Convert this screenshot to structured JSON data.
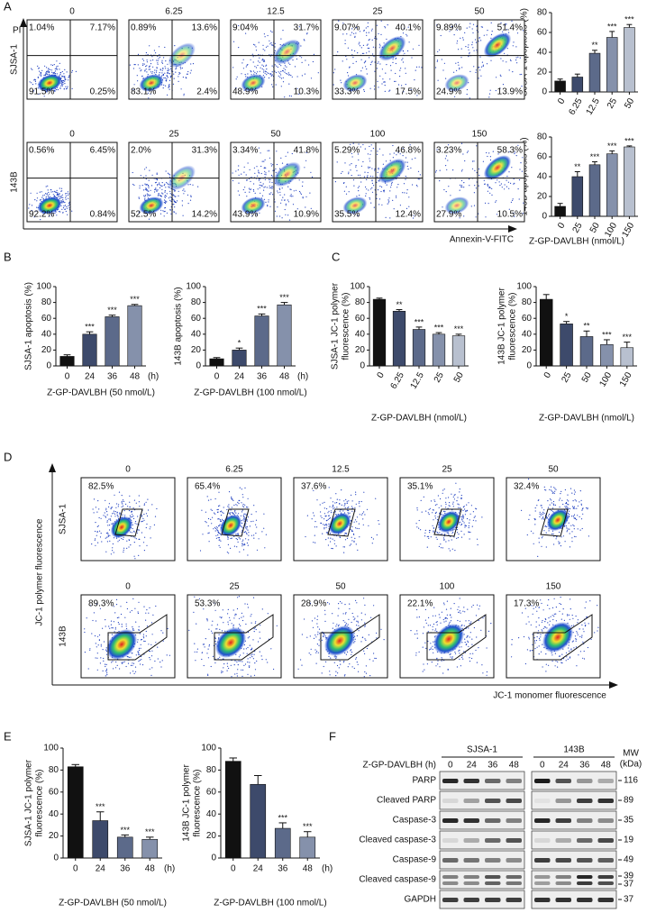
{
  "panel_labels": [
    "A",
    "B",
    "C",
    "D",
    "E",
    "F"
  ],
  "chart_data": [
    {
      "type": "bar",
      "y_label": "SJSA-1 apoptosis (%)",
      "categories": [
        "0",
        "6.25",
        "12.5",
        "25",
        "50"
      ],
      "values": [
        11,
        15,
        39,
        55,
        65
      ],
      "errors": [
        2,
        3,
        3,
        6,
        3
      ],
      "annotations": [
        null,
        null,
        "**",
        "***",
        "***"
      ],
      "colors": [
        "#111111",
        "#3d4a6b",
        "#5c6a8a",
        "#8591ab",
        "#b8c0cf"
      ],
      "ylim": [
        0,
        80
      ],
      "yticks": [
        0,
        20,
        40,
        60,
        80
      ]
    },
    {
      "type": "bar",
      "y_label": "143B apoptosis (%)",
      "x_label": "Z-GP-DAVLBH (nmol/L)",
      "categories": [
        "0",
        "25",
        "50",
        "100",
        "150"
      ],
      "values": [
        10,
        40,
        52,
        63,
        70
      ],
      "errors": [
        3,
        5,
        3,
        3,
        1
      ],
      "annotations": [
        null,
        "**",
        "***",
        "***",
        "***"
      ],
      "colors": [
        "#111111",
        "#3d4a6b",
        "#5c6a8a",
        "#8591ab",
        "#b8c0cf"
      ],
      "ylim": [
        0,
        80
      ],
      "yticks": [
        0,
        20,
        40,
        60,
        80
      ]
    },
    {
      "type": "bar",
      "y_label": "SJSA-1 apoptosis (%)",
      "x_label": "Z-GP-DAVLBH (50 nmol/L)",
      "x_unit": "(h)",
      "categories": [
        "0",
        "24",
        "36",
        "48"
      ],
      "values": [
        12,
        40,
        62,
        76
      ],
      "errors": [
        2,
        3,
        2,
        1.5
      ],
      "annotations": [
        null,
        "***",
        "***",
        "***"
      ],
      "colors": [
        "#111111",
        "#3d4a6b",
        "#5c6a8a",
        "#8591ab"
      ],
      "ylim": [
        0,
        100
      ],
      "yticks": [
        0,
        20,
        40,
        60,
        80,
        100
      ]
    },
    {
      "type": "bar",
      "y_label": "143B apoptosis (%)",
      "x_label": "Z-GP-DAVLBH (100 nmol/L)",
      "x_unit": "(h)",
      "categories": [
        "0",
        "24",
        "36",
        "48"
      ],
      "values": [
        9,
        20,
        63,
        77
      ],
      "errors": [
        1.5,
        2.5,
        2.5,
        3
      ],
      "annotations": [
        null,
        "*",
        "***",
        "***"
      ],
      "colors": [
        "#111111",
        "#3d4a6b",
        "#5c6a8a",
        "#8591ab"
      ],
      "ylim": [
        0,
        100
      ],
      "yticks": [
        0,
        20,
        40,
        60,
        80,
        100
      ]
    },
    {
      "type": "bar",
      "y_label": [
        "SJSA-1 JC-1 polymer",
        "fluorescence (%)"
      ],
      "x_label": "Z-GP-DAVLBH (nmol/L)",
      "categories": [
        "0",
        "6.25",
        "12.5",
        "25",
        "50"
      ],
      "values": [
        84,
        69,
        46,
        40,
        38
      ],
      "errors": [
        1.5,
        2,
        3,
        2,
        2
      ],
      "annotations": [
        null,
        "**",
        "***",
        "***",
        "***"
      ],
      "colors": [
        "#111111",
        "#3d4a6b",
        "#5c6a8a",
        "#8591ab",
        "#b8c0cf"
      ],
      "ylim": [
        0,
        100
      ],
      "yticks": [
        0,
        20,
        40,
        60,
        80,
        100
      ]
    },
    {
      "type": "bar",
      "y_label": [
        "143B JC-1 polymer",
        "fluorescence (%)"
      ],
      "x_label": "Z-GP-DAVLBH (nmol/L)",
      "categories": [
        "0",
        "25",
        "50",
        "100",
        "150"
      ],
      "values": [
        84,
        53,
        37,
        27,
        23
      ],
      "errors": [
        6,
        3,
        7,
        6,
        7
      ],
      "annotations": [
        null,
        "*",
        "**",
        "***",
        "***"
      ],
      "colors": [
        "#111111",
        "#3d4a6b",
        "#5c6a8a",
        "#8591ab",
        "#b8c0cf"
      ],
      "ylim": [
        0,
        100
      ],
      "yticks": [
        0,
        20,
        40,
        60,
        80,
        100
      ]
    },
    {
      "type": "bar",
      "y_label": [
        "SJSA-1 JC-1 polymer",
        "fluorescence (%)"
      ],
      "x_label": "Z-GP-DAVLBH (50 nmol/L)",
      "x_unit": "(h)",
      "categories": [
        "0",
        "24",
        "36",
        "48"
      ],
      "values": [
        83,
        34,
        19,
        17
      ],
      "errors": [
        2,
        8,
        2,
        2
      ],
      "annotations": [
        null,
        "***",
        "***",
        "***"
      ],
      "colors": [
        "#111111",
        "#3d4a6b",
        "#5c6a8a",
        "#8591ab"
      ],
      "ylim": [
        0,
        100
      ],
      "yticks": [
        0,
        20,
        40,
        60,
        80,
        100
      ]
    },
    {
      "type": "bar",
      "y_label": [
        "143B JC-1 polymer",
        "fluorescence (%)"
      ],
      "x_label": "Z-GP-DAVLBH (100 nmol/L)",
      "x_unit": "(h)",
      "categories": [
        "0",
        "24",
        "36",
        "48"
      ],
      "values": [
        88,
        67,
        27,
        19
      ],
      "errors": [
        3,
        8,
        5,
        5
      ],
      "annotations": [
        null,
        null,
        "***",
        "***"
      ],
      "colors": [
        "#111111",
        "#3d4a6b",
        "#5c6a8a",
        "#8591ab"
      ],
      "ylim": [
        0,
        100
      ],
      "yticks": [
        0,
        20,
        40,
        60,
        80,
        100
      ]
    }
  ],
  "flow_apoptosis": {
    "x_label": "Annexin-V-FITC",
    "y_label": "PI",
    "rows": [
      {
        "cell_line": "SJSA-1",
        "doses": [
          "0",
          "6.25",
          "12.5",
          "25",
          "50"
        ],
        "quadrants": [
          [
            "1.04%",
            "7.17%",
            "91.5%",
            "0.25%"
          ],
          [
            "0.89%",
            "13.6%",
            "83.1%",
            "2.4%"
          ],
          [
            "9.04%",
            "31.7%",
            "48.9%",
            "10.3%"
          ],
          [
            "9.07%",
            "40.1%",
            "33.3%",
            "17.5%"
          ],
          [
            "9.89%",
            "51.4%",
            "24.9%",
            "13.9%"
          ]
        ]
      },
      {
        "cell_line": "143B",
        "doses": [
          "0",
          "25",
          "50",
          "100",
          "150"
        ],
        "quadrants": [
          [
            "0.56%",
            "6.45%",
            "92.2%",
            "0.84%"
          ],
          [
            "2.0%",
            "31.3%",
            "52.5%",
            "14.2%"
          ],
          [
            "3.34%",
            "41.8%",
            "43.9%",
            "10.9%"
          ],
          [
            "5.29%",
            "46.8%",
            "35.5%",
            "12.4%"
          ],
          [
            "3.23%",
            "58.3%",
            "27.9%",
            "10.5%"
          ]
        ]
      }
    ]
  },
  "flow_jc1": {
    "x_label": "JC-1 monomer fluorescence",
    "y_label": "JC-1 polymer fluorescence",
    "rows": [
      {
        "cell_line": "SJSA-1",
        "doses": [
          "0",
          "6.25",
          "12.5",
          "25",
          "50"
        ],
        "percents": [
          "82.5%",
          "65.4%",
          "37.6%",
          "35.1%",
          "32.4%"
        ]
      },
      {
        "cell_line": "143B",
        "doses": [
          "0",
          "25",
          "50",
          "100",
          "150"
        ],
        "percents": [
          "89.3%",
          "53.3%",
          "28.9%",
          "22.1%",
          "17.3%"
        ]
      }
    ]
  },
  "western_blot": {
    "treatment_label": "Z-GP-DAVLBH (h)",
    "groups": [
      "SJSA-1",
      "143B"
    ],
    "lanes": [
      "0",
      "24",
      "36",
      "48"
    ],
    "mw_header": [
      "MW",
      "(kDa)"
    ],
    "rows": [
      {
        "name": "PARP",
        "mw": [
          "116"
        ]
      },
      {
        "name": "Cleaved PARP",
        "mw": [
          "89"
        ]
      },
      {
        "name": "Caspase-3",
        "mw": [
          "35"
        ]
      },
      {
        "name": "Cleaved caspase-3",
        "mw": [
          "19"
        ]
      },
      {
        "name": "Caspase-9",
        "mw": [
          "49"
        ]
      },
      {
        "name": "Cleaved caspase-9",
        "mw": [
          "39",
          "37"
        ]
      },
      {
        "name": "GAPDH",
        "mw": [
          "37"
        ]
      }
    ]
  }
}
